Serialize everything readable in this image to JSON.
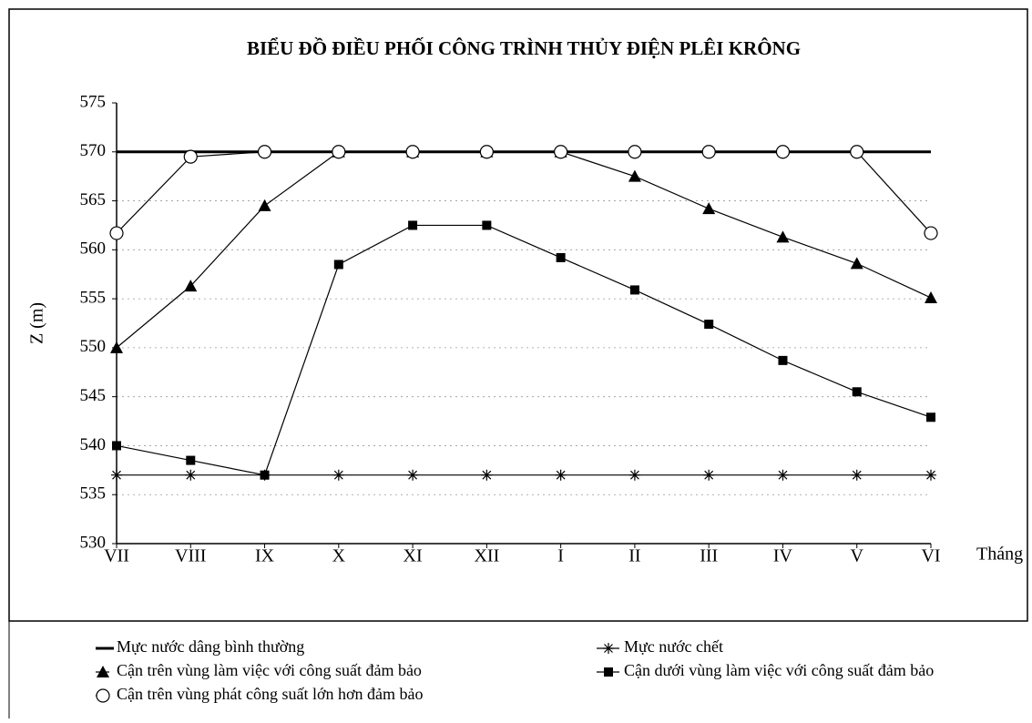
{
  "chart_data": {
    "type": "line",
    "title": "BIỂU ĐỒ ĐIỀU PHỐI CÔNG TRÌNH THỦY ĐIỆN PLÊI KRÔNG",
    "y_label": "Z (m)",
    "x_label": "Tháng",
    "categories": [
      "VII",
      "VIII",
      "IX",
      "X",
      "XI",
      "XII",
      "I",
      "II",
      "III",
      "IV",
      "V",
      "VI"
    ],
    "ylim": [
      530,
      575
    ],
    "yticks": [
      530,
      535,
      540,
      545,
      550,
      555,
      560,
      565,
      570,
      575
    ],
    "grid": true,
    "legend": "bottom",
    "series": [
      {
        "name": "Mực nước dâng bình thường",
        "color": "#000000",
        "marker": "none",
        "values": [
          570,
          570,
          570,
          570,
          570,
          570,
          570,
          570,
          570,
          570,
          570,
          570
        ]
      },
      {
        "name": "Mực nước chết",
        "color": "#000000",
        "marker": "star",
        "values": [
          537,
          537,
          537,
          537,
          537,
          537,
          537,
          537,
          537,
          537,
          537,
          537
        ]
      },
      {
        "name": "Cận trên vùng làm việc với công suất đảm bảo",
        "color": "#000000",
        "marker": "triangle",
        "values": [
          550,
          556.3,
          564.5,
          570,
          570,
          570,
          570,
          567.5,
          564.2,
          561.3,
          558.6,
          555.1
        ]
      },
      {
        "name": "Cận dưới vùng làm việc với công suất đảm bảo",
        "color": "#000000",
        "marker": "square",
        "values": [
          540,
          538.5,
          537,
          558.5,
          562.5,
          562.5,
          559.2,
          555.9,
          552.4,
          548.7,
          545.5,
          542.9
        ]
      },
      {
        "name": "Cận trên vùng phát công suất lớn hơn đảm bảo",
        "color": "#000000",
        "marker": "circle",
        "values": [
          561.7,
          569.5,
          570,
          570,
          570,
          570,
          570,
          570,
          570,
          570,
          570,
          561.7
        ]
      }
    ]
  }
}
